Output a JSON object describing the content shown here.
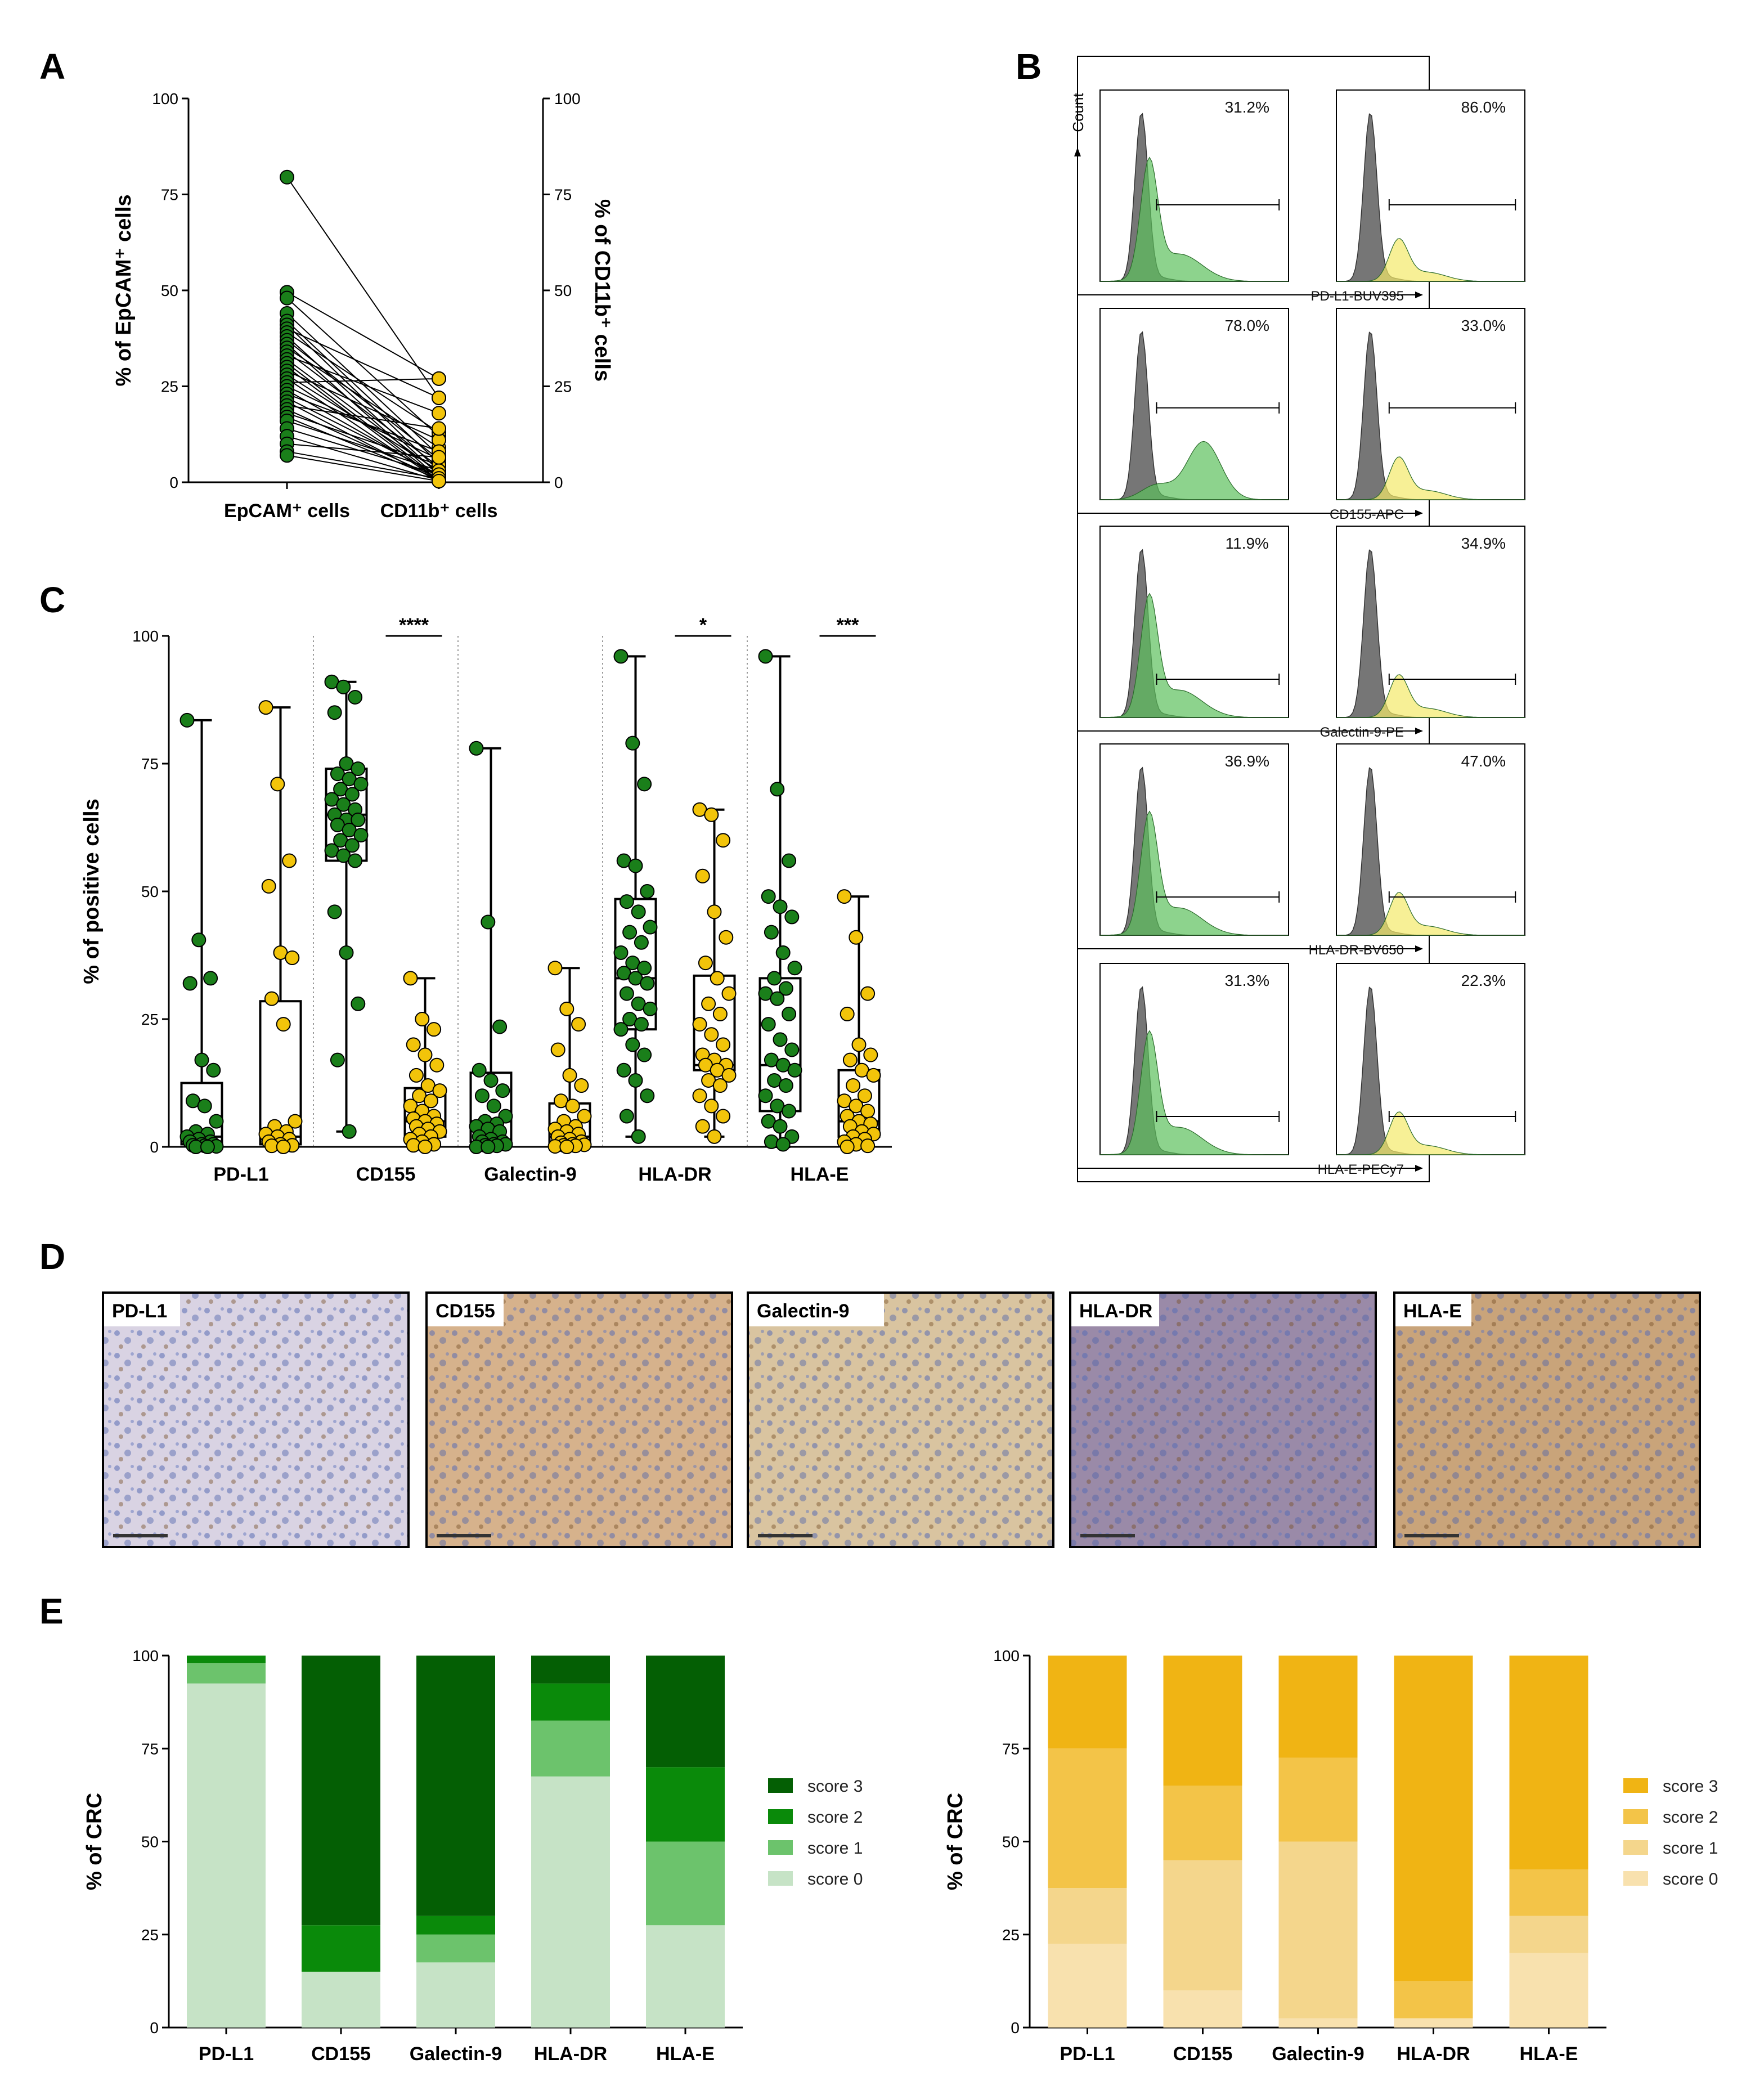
{
  "panel_letters": [
    "A",
    "B",
    "C",
    "D",
    "E"
  ],
  "colors": {
    "green": "#1a7f1a",
    "yellow": "#f2c40a",
    "gray_hist": "#6f6f6f",
    "green_fill": "#5cc05c",
    "yellow_fill": "#f3ea6a",
    "green_scores": [
      "#c6e3c6",
      "#6cc36c",
      "#0a8a0a",
      "#045f04"
    ],
    "yellow_scores": [
      "#f8e1ae",
      "#f4d68c",
      "#f3c448",
      "#f0b414"
    ]
  },
  "chart_data": [
    {
      "id": "A",
      "type": "scatter",
      "subtype": "paired",
      "title": "",
      "xlabel_categories": [
        "EpCAM⁺ cells",
        "CD11b⁺ cells"
      ],
      "ylabel_left": "% of EpCAM⁺ cells",
      "ylabel_right": "% of CD11b⁺ cells",
      "ylim": [
        0,
        100
      ],
      "yticks": [
        0,
        25,
        50,
        75,
        100
      ],
      "pairs": [
        [
          79.5,
          22.0
        ],
        [
          49.5,
          27.0
        ],
        [
          48.0,
          12.0
        ],
        [
          44.0,
          7.0
        ],
        [
          42.0,
          5.0
        ],
        [
          41.0,
          3.0
        ],
        [
          40.0,
          22.0
        ],
        [
          39.0,
          13.0
        ],
        [
          38.0,
          2.0
        ],
        [
          37.0,
          6.0
        ],
        [
          36.0,
          1.0
        ],
        [
          35.0,
          9.0
        ],
        [
          34.0,
          4.0
        ],
        [
          33.0,
          18.0
        ],
        [
          32.0,
          2.5
        ],
        [
          31.0,
          1.0
        ],
        [
          30.0,
          0.5
        ],
        [
          29.0,
          11.0
        ],
        [
          28.0,
          3.0
        ],
        [
          27.0,
          0.5
        ],
        [
          26.0,
          27.0
        ],
        [
          25.0,
          6.0
        ],
        [
          24.0,
          1.5
        ],
        [
          23.0,
          8.0
        ],
        [
          22.0,
          2.0
        ],
        [
          21.0,
          0.3
        ],
        [
          20.0,
          14.0
        ],
        [
          19.0,
          1.0
        ],
        [
          18.0,
          4.5
        ],
        [
          17.0,
          0.8
        ],
        [
          16.0,
          3.0
        ],
        [
          14.0,
          2.0
        ],
        [
          12.0,
          0.5
        ],
        [
          10.0,
          6.5
        ],
        [
          8.0,
          1.0
        ],
        [
          7.0,
          0.3
        ]
      ]
    },
    {
      "id": "B",
      "type": "histogram",
      "xaxis_ylabel": "Count",
      "rows": [
        {
          "marker": "PD-L1-BUV395",
          "left_pct": "31.2%",
          "right_pct": "86.0%"
        },
        {
          "marker": "CD155-APC",
          "left_pct": "78.0%",
          "right_pct": "33.0%"
        },
        {
          "marker": "Galectin-9-PE",
          "left_pct": "11.9%",
          "right_pct": "34.9%"
        },
        {
          "marker": "HLA-DR-BV650",
          "left_pct": "36.9%",
          "right_pct": "47.0%"
        },
        {
          "marker": "HLA-E-PECy7",
          "left_pct": "31.3%",
          "right_pct": "22.3%"
        }
      ]
    },
    {
      "id": "C",
      "type": "box",
      "ylabel": "% of positive cells",
      "ylim": [
        0,
        100
      ],
      "yticks": [
        0,
        25,
        50,
        75,
        100
      ],
      "categories": [
        "PD-L1",
        "CD155",
        "Galectin-9",
        "HLA-DR",
        "HLA-E"
      ],
      "significance": [
        "",
        "****",
        "",
        "*",
        "***"
      ],
      "series": [
        {
          "name": "EpCAM+",
          "color": "green",
          "boxes": [
            {
              "min": 0,
              "q1": 0.5,
              "median": 2,
              "q3": 12.5,
              "max": 83.5,
              "points": [
                83.5,
                40.5,
                33,
                32,
                17,
                15,
                9,
                8,
                5,
                3,
                2.5,
                2,
                1.5,
                1,
                1,
                0.5,
                0.5,
                0.3,
                0.2,
                0.1,
                0,
                0
              ]
            },
            {
              "min": 3,
              "q1": 56,
              "median": 65,
              "q3": 74,
              "max": 91,
              "points": [
                91,
                90,
                88,
                85,
                75,
                74,
                73,
                72,
                71,
                70,
                69,
                68,
                67,
                66,
                65,
                64,
                64,
                63,
                62,
                61,
                60,
                59,
                58,
                57,
                56,
                46,
                38,
                28,
                17,
                3
              ]
            },
            {
              "min": 0,
              "q1": 1,
              "median": 5,
              "q3": 14.5,
              "max": 78,
              "points": [
                78,
                44,
                23.5,
                15,
                13,
                11,
                10,
                8,
                6,
                5,
                4.5,
                4,
                3.5,
                3,
                2,
                1.5,
                1,
                1,
                0.5,
                0.5,
                0.3,
                0.2,
                0,
                0
              ]
            },
            {
              "min": 2,
              "q1": 23,
              "median": 33,
              "q3": 48.5,
              "max": 96,
              "points": [
                96,
                79,
                71,
                56,
                55,
                50,
                48,
                46,
                43,
                42,
                40,
                38,
                36,
                35,
                34,
                33,
                32,
                30,
                28,
                27,
                25,
                24,
                23,
                20,
                18,
                15,
                13,
                10,
                6,
                2
              ]
            },
            {
              "min": 0,
              "q1": 7,
              "median": 16,
              "q3": 33,
              "max": 96,
              "points": [
                96,
                70,
                56,
                49,
                47,
                45,
                42,
                38,
                35,
                33,
                31,
                30,
                29,
                26,
                24,
                21,
                19,
                17,
                16,
                15,
                13,
                12,
                10,
                8,
                7,
                5,
                4,
                2,
                1,
                0.5
              ]
            }
          ]
        },
        {
          "name": "CD11b+",
          "color": "yellow",
          "boxes": [
            {
              "min": 0,
              "q1": 0.5,
              "median": 2,
              "q3": 28.5,
              "max": 86,
              "points": [
                86,
                71,
                56,
                51,
                38,
                37,
                29,
                24,
                5,
                4,
                3,
                2.5,
                2,
                1.5,
                1,
                0.5,
                0.3,
                0.2,
                0
              ]
            },
            {
              "min": 0,
              "q1": 2,
              "median": 5,
              "q3": 11.5,
              "max": 33,
              "points": [
                33,
                25,
                23,
                20,
                18,
                16,
                14,
                12,
                11,
                10,
                9,
                8,
                7,
                6,
                5.5,
                5,
                4.5,
                4,
                3.5,
                3,
                2.5,
                2,
                1.5,
                1,
                0.5,
                0.3,
                0
              ]
            },
            {
              "min": 0,
              "q1": 0.5,
              "median": 2,
              "q3": 8.5,
              "max": 35,
              "points": [
                35,
                27,
                24,
                19,
                14,
                12,
                9,
                8,
                6,
                5,
                4,
                3.5,
                3,
                2.5,
                2,
                1.5,
                1,
                0.8,
                0.5,
                0.4,
                0.3,
                0.2,
                0.1,
                0
              ]
            },
            {
              "min": 2,
              "q1": 15,
              "median": 16,
              "q3": 33.5,
              "max": 66,
              "points": [
                66,
                65,
                60,
                53,
                46,
                41,
                36,
                33,
                30,
                28,
                26,
                24,
                22,
                20,
                18,
                17,
                16,
                16,
                15,
                14,
                13,
                12,
                10,
                8,
                6,
                4,
                2
              ]
            },
            {
              "min": 0,
              "q1": 2,
              "median": 5,
              "q3": 15,
              "max": 49,
              "points": [
                49,
                41,
                30,
                26,
                20,
                18,
                17,
                15,
                14,
                12,
                10,
                9,
                8,
                7,
                6,
                5,
                4.5,
                4,
                3,
                2.5,
                2,
                1.5,
                1,
                0.5,
                0.2,
                0
              ]
            }
          ]
        }
      ]
    },
    {
      "id": "E-left",
      "type": "bar",
      "stacked": true,
      "ylabel": "% of CRC",
      "ylim": [
        0,
        100
      ],
      "yticks": [
        0,
        25,
        50,
        75,
        100
      ],
      "categories": [
        "PD-L1",
        "CD155",
        "Galectin-9",
        "HLA-DR",
        "HLA-E"
      ],
      "series": [
        {
          "name": "score 0",
          "values": [
            92.5,
            15,
            17.5,
            67.5,
            27.5
          ]
        },
        {
          "name": "score 1",
          "values": [
            5.5,
            0,
            7.5,
            15,
            22.5
          ]
        },
        {
          "name": "score 2",
          "values": [
            2,
            12.5,
            5,
            10,
            20
          ]
        },
        {
          "name": "score 3",
          "values": [
            0,
            72.5,
            70,
            7.5,
            30
          ]
        }
      ],
      "legend_labels": [
        "score 3",
        "score 2",
        "score 1",
        "score 0"
      ]
    },
    {
      "id": "E-right",
      "type": "bar",
      "stacked": true,
      "ylabel": "% of CRC",
      "ylim": [
        0,
        100
      ],
      "yticks": [
        0,
        25,
        50,
        75,
        100
      ],
      "categories": [
        "PD-L1",
        "CD155",
        "Galectin-9",
        "HLA-DR",
        "HLA-E"
      ],
      "series": [
        {
          "name": "score 0",
          "values": [
            22.5,
            10,
            2.5,
            2.5,
            20
          ]
        },
        {
          "name": "score 1",
          "values": [
            15,
            35,
            47.5,
            0,
            10
          ]
        },
        {
          "name": "score 2",
          "values": [
            37.5,
            20,
            22.5,
            10,
            12.5
          ]
        },
        {
          "name": "score 3",
          "values": [
            25,
            35,
            27.5,
            87.5,
            57.5
          ]
        }
      ],
      "legend_labels": [
        "score 3",
        "score 2",
        "score 1",
        "score 0"
      ]
    }
  ],
  "ihc_labels": [
    "PD-L1",
    "CD155",
    "Galectin-9",
    "HLA-DR",
    "HLA-E"
  ]
}
